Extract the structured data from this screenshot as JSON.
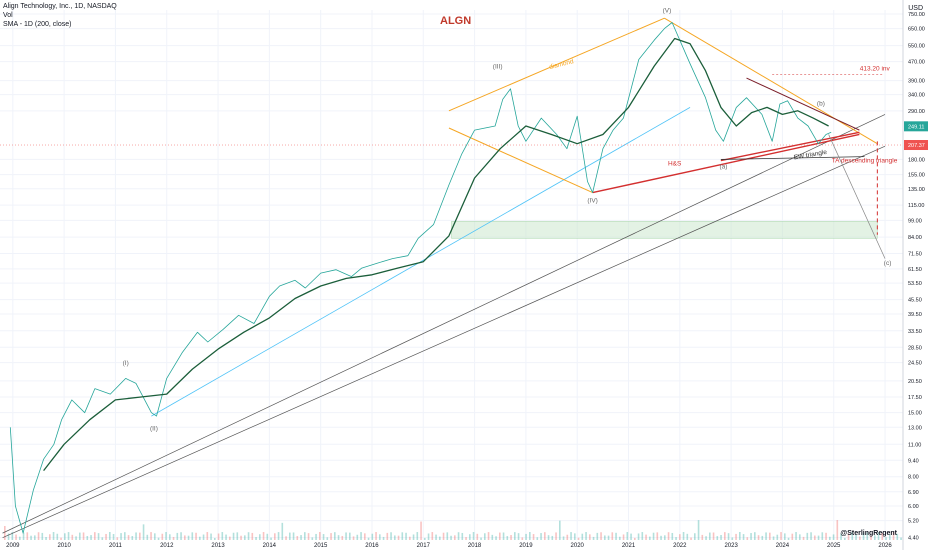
{
  "header": {
    "line1": "Align Technology, Inc., 1D, NASDAQ",
    "line2": "Vol",
    "line3": "SMA - 1D (200, close)"
  },
  "symbol": "ALGN",
  "currency": "USD",
  "watermark": "@SterlingRegent",
  "colors": {
    "price": "#26a69a",
    "sma": "#1b5e3a",
    "channel": "#f5a623",
    "hs": "#d32f2f",
    "cyan": "#4fc3f7",
    "trend": "#555555",
    "zone": "#c8e6c9"
  },
  "chart_data": {
    "type": "line",
    "x_ticks": [
      "2009",
      "2010",
      "2011",
      "2012",
      "2013",
      "2014",
      "2015",
      "2016",
      "2017",
      "2018",
      "2019",
      "2020",
      "2021",
      "2022",
      "2023",
      "2024",
      "2025",
      "2026"
    ],
    "y_scale": "log",
    "y_ticks": [
      "750.00",
      "650.00",
      "550.00",
      "470.00",
      "390.00",
      "340.00",
      "290.00",
      "249.11",
      "207.37",
      "180.00",
      "155.00",
      "135.00",
      "115.00",
      "99.00",
      "84.00",
      "71.50",
      "61.50",
      "53.50",
      "45.50",
      "39.50",
      "33.50",
      "28.50",
      "24.50",
      "20.50",
      "17.50",
      "15.00",
      "13.00",
      "11.00",
      "9.40",
      "8.00",
      "6.90",
      "6.00",
      "5.20",
      "4.40"
    ],
    "ylim": [
      4.3,
      780
    ],
    "series": [
      {
        "name": "Price",
        "x": [
          2008.95,
          2009.05,
          2009.2,
          2009.4,
          2009.6,
          2009.8,
          2009.95,
          2010.15,
          2010.4,
          2010.6,
          2010.9,
          2011.2,
          2011.4,
          2011.7,
          2011.8,
          2012.0,
          2012.3,
          2012.6,
          2012.8,
          2013.1,
          2013.4,
          2013.7,
          2014.0,
          2014.2,
          2014.5,
          2014.7,
          2015.0,
          2015.3,
          2015.6,
          2015.8,
          2016.1,
          2016.4,
          2016.7,
          2016.9,
          2017.2,
          2017.5,
          2017.75,
          2018.0,
          2018.4,
          2018.55,
          2018.7,
          2018.85,
          2019.0,
          2019.3,
          2019.6,
          2019.8,
          2020.0,
          2020.2,
          2020.3,
          2020.5,
          2020.7,
          2020.9,
          2021.2,
          2021.5,
          2021.7,
          2021.85,
          2022.0,
          2022.2,
          2022.5,
          2022.7,
          2022.85,
          2023.1,
          2023.3,
          2023.6,
          2023.8,
          2023.95,
          2024.1,
          2024.3,
          2024.5,
          2024.7,
          2024.85,
          2024.95
        ],
        "values": [
          13,
          6,
          4.6,
          7,
          9.5,
          11,
          14,
          17,
          15,
          19,
          18,
          21,
          20,
          15,
          14.5,
          21,
          27,
          33,
          30,
          34,
          39,
          36,
          47,
          52,
          55,
          51,
          59,
          61,
          57,
          62,
          65,
          68,
          70,
          83,
          95,
          140,
          190,
          240,
          250,
          325,
          360,
          250,
          215,
          270,
          230,
          200,
          275,
          145,
          130,
          200,
          240,
          270,
          480,
          580,
          650,
          690,
          580,
          460,
          330,
          240,
          215,
          300,
          330,
          280,
          215,
          310,
          320,
          270,
          250,
          210,
          230,
          235
        ]
      },
      {
        "name": "SMA 200",
        "x": [
          2009.6,
          2010.0,
          2010.5,
          2011.0,
          2011.5,
          2012.0,
          2012.5,
          2013.0,
          2013.5,
          2014.0,
          2014.5,
          2015.0,
          2015.5,
          2016.0,
          2016.5,
          2017.0,
          2017.5,
          2018.0,
          2018.5,
          2019.0,
          2019.5,
          2020.0,
          2020.5,
          2021.0,
          2021.5,
          2021.9,
          2022.2,
          2022.5,
          2022.8,
          2023.1,
          2023.4,
          2023.7,
          2024.0,
          2024.3,
          2024.6,
          2024.9
        ],
        "values": [
          8.5,
          11,
          14,
          17,
          17.5,
          18,
          23,
          28,
          33,
          38,
          46,
          52,
          56,
          58,
          62,
          66,
          85,
          150,
          200,
          250,
          230,
          210,
          230,
          300,
          450,
          590,
          560,
          430,
          300,
          250,
          285,
          300,
          280,
          290,
          270,
          250
        ]
      }
    ],
    "annotations": [
      "(I)",
      "(II)",
      "(III)",
      "(IV)",
      "(V)",
      "(a)",
      "(b)",
      "(c)",
      "diamond",
      "H&S",
      "EW triangle",
      "TA descending triangle",
      "413.20 inv"
    ]
  }
}
